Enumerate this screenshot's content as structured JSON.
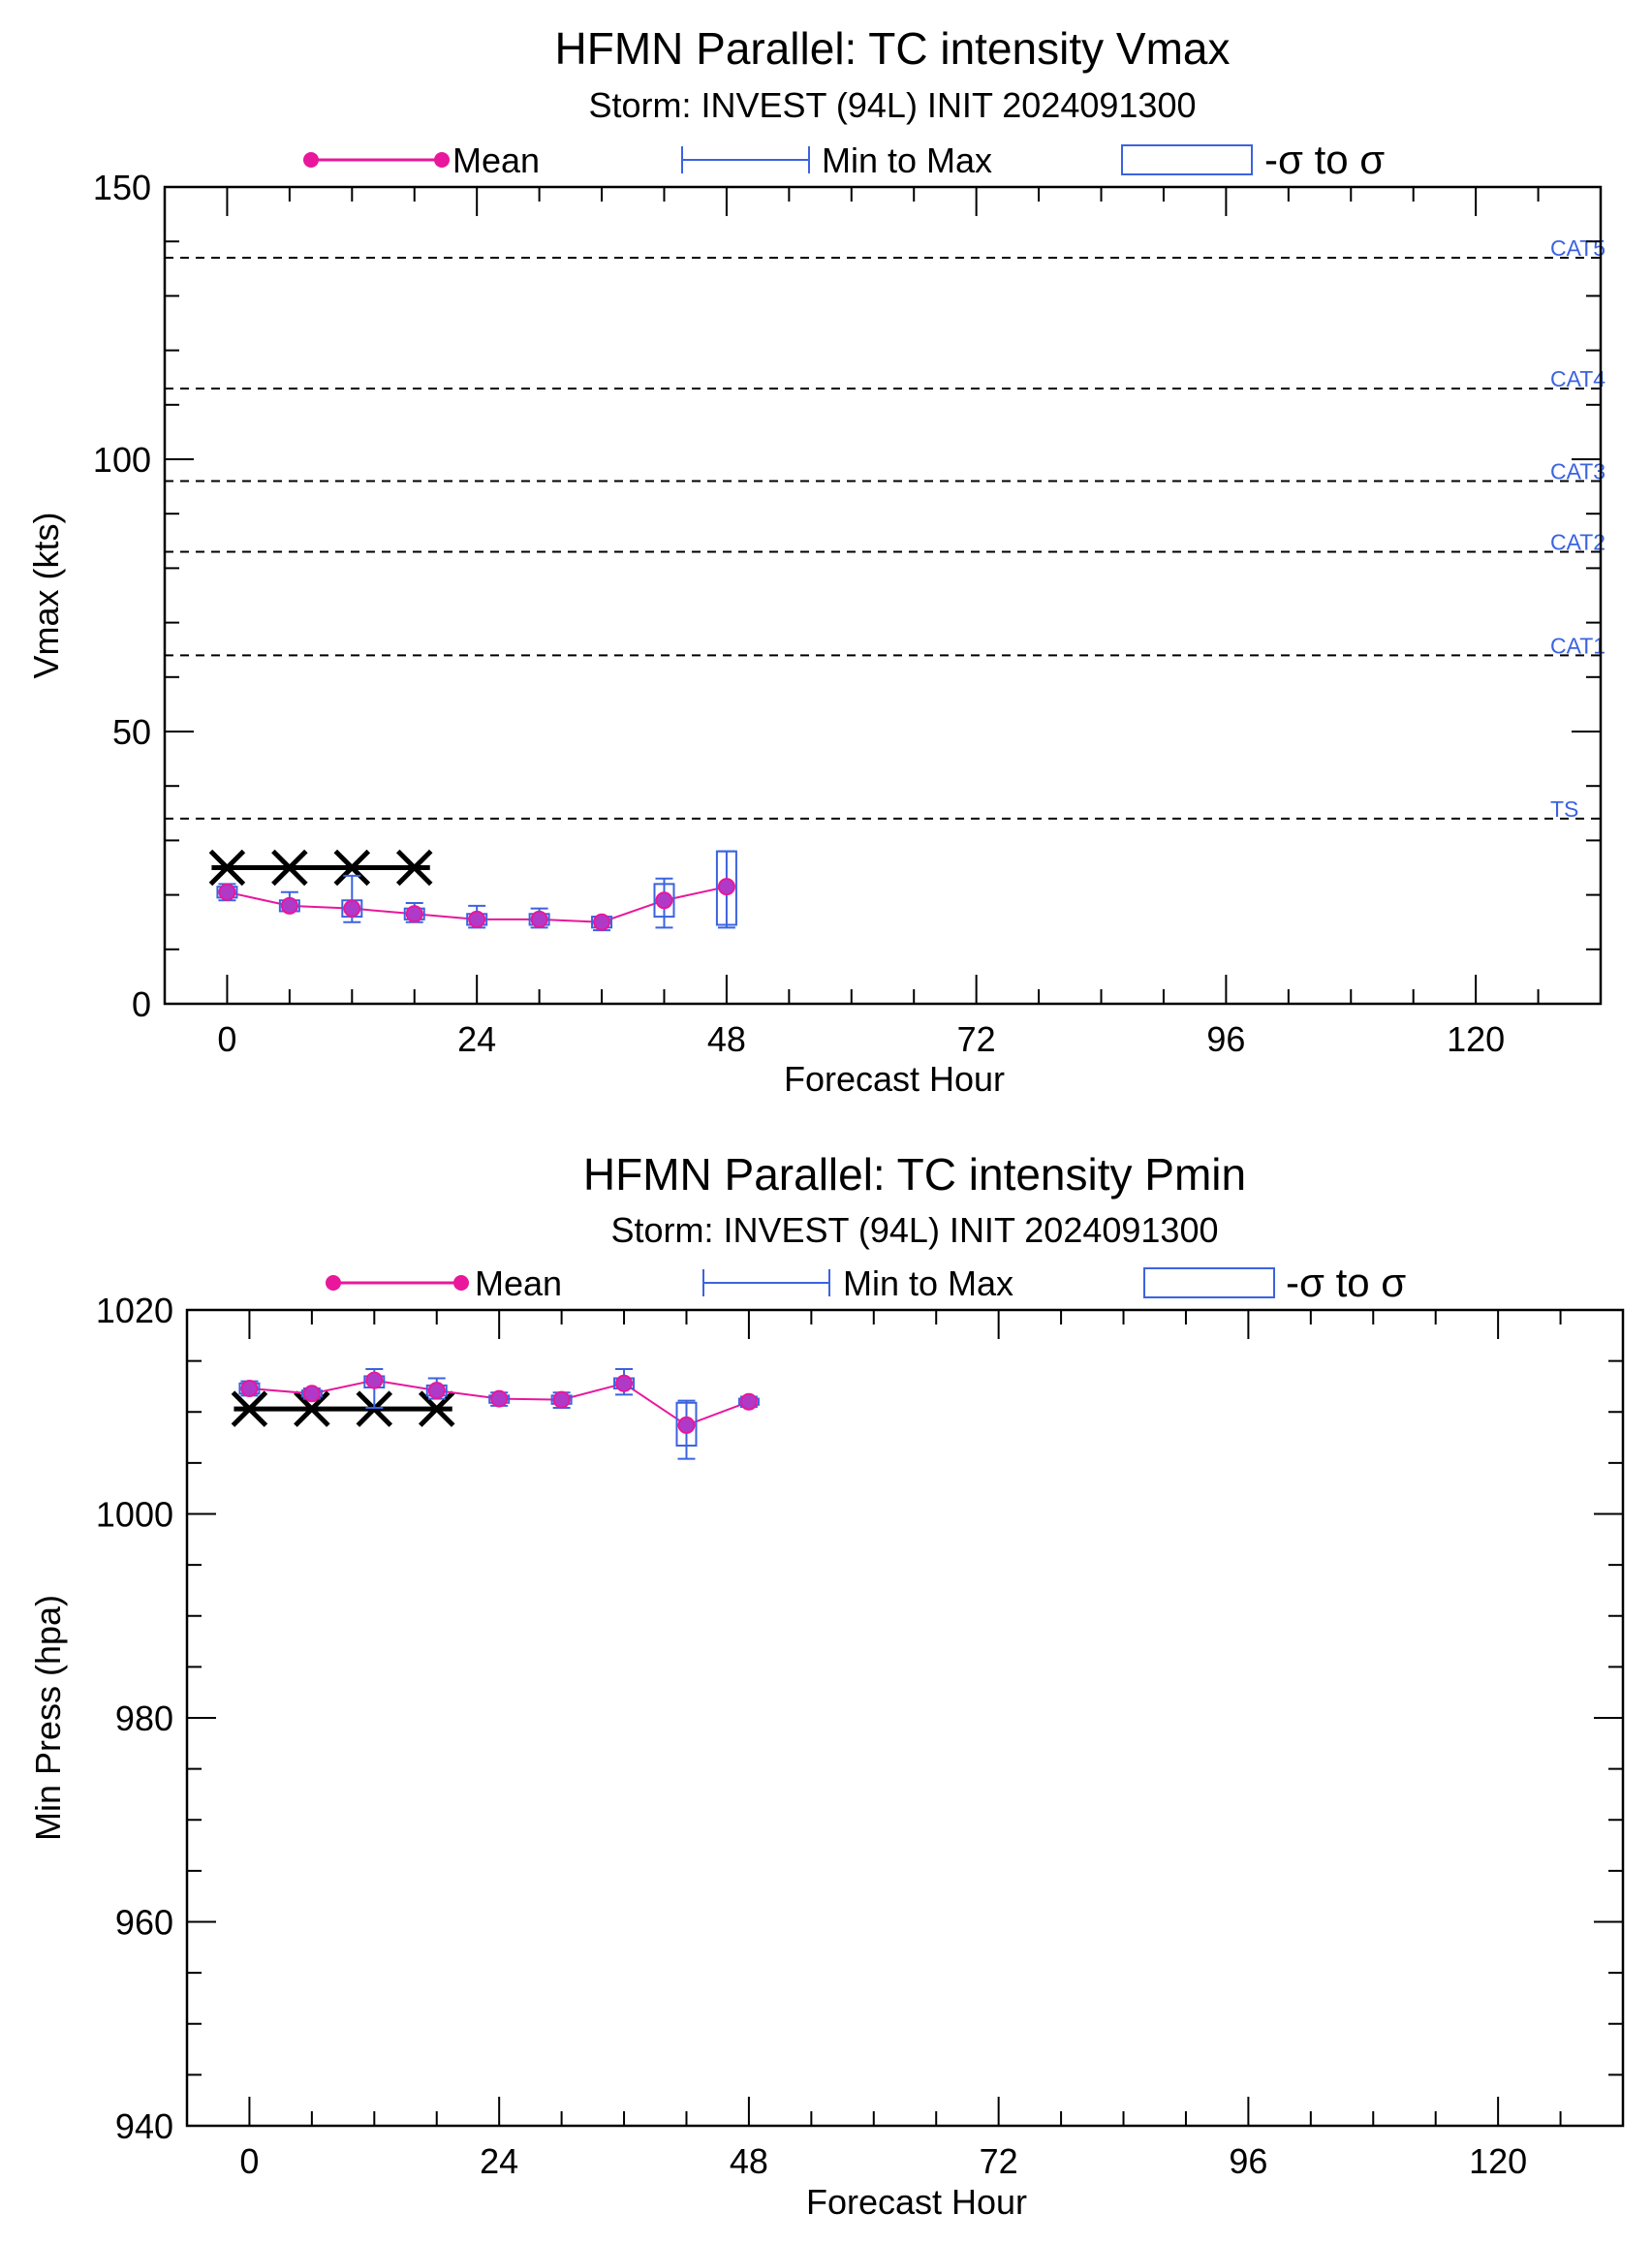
{
  "chart_data": [
    {
      "type": "line",
      "title": "HFMN Parallel: TC intensity Vmax",
      "subtitle": "Storm: INVEST (94L) INIT 2024091300",
      "xlabel": "Forecast Hour",
      "ylabel": "Vmax (kts)",
      "xlim": [
        -6,
        132
      ],
      "ylim": [
        0,
        150
      ],
      "xticks": [
        0,
        24,
        48,
        72,
        96,
        120
      ],
      "xtick_labels": [
        "0",
        "24",
        "48",
        "72",
        "96",
        "120"
      ],
      "yticks": [
        0,
        50,
        100,
        150
      ],
      "ytick_labels": [
        "0",
        "50",
        "100",
        "150"
      ],
      "yminor_step": 10,
      "xminor_step": 6,
      "legend": {
        "placement": "top",
        "mean_label": "Mean",
        "range_label": "Min to Max",
        "sigma_label": "-σ to σ"
      },
      "reference_lines": [
        {
          "label": "TS",
          "y": 34
        },
        {
          "label": "CAT1",
          "y": 64
        },
        {
          "label": "CAT2",
          "y": 83
        },
        {
          "label": "CAT3",
          "y": 96
        },
        {
          "label": "CAT4",
          "y": 113
        },
        {
          "label": "CAT5",
          "y": 137
        }
      ],
      "series": [
        {
          "name": "Mean",
          "x": [
            0,
            6,
            12,
            18,
            24,
            30,
            36,
            42,
            48
          ],
          "mean": [
            20.5,
            18,
            17.5,
            16.5,
            15.5,
            15.5,
            15,
            19,
            21.5
          ],
          "min": [
            19,
            17,
            15,
            15,
            14,
            14,
            13.5,
            14,
            14
          ],
          "max": [
            22,
            20.5,
            23.5,
            18.5,
            18,
            17.5,
            16,
            23,
            28
          ],
          "sigma_low": [
            19.5,
            17,
            16,
            15.5,
            14.5,
            14.5,
            14,
            16,
            14.5
          ],
          "sigma_high": [
            21.5,
            19,
            19,
            17.5,
            16.5,
            16.5,
            16,
            22,
            28
          ]
        }
      ],
      "best_track": {
        "x": [
          0,
          6,
          12,
          18
        ],
        "y": [
          25,
          25,
          25,
          25
        ]
      },
      "colors": {
        "mean": "#e8179b",
        "mean_fill": "#b03ac8",
        "range": "#3b63e0",
        "ref_line": "#000000",
        "best_track": "#000000"
      }
    },
    {
      "type": "line",
      "title": "HFMN Parallel: TC intensity Pmin",
      "subtitle": "Storm: INVEST (94L) INIT 2024091300",
      "xlabel": "Forecast Hour",
      "ylabel": "Min Press (hpa)",
      "xlim": [
        -6,
        132
      ],
      "ylim": [
        940,
        1020
      ],
      "xticks": [
        0,
        24,
        48,
        72,
        96,
        120
      ],
      "xtick_labels": [
        "0",
        "24",
        "48",
        "72",
        "96",
        "120"
      ],
      "yticks": [
        940,
        960,
        980,
        1000,
        1020
      ],
      "ytick_labels": [
        "940",
        "960",
        "980",
        "1000",
        "1020"
      ],
      "yminor_step": 5,
      "xminor_step": 6,
      "legend": {
        "placement": "top",
        "mean_label": "Mean",
        "range_label": "Min to Max",
        "sigma_label": "-σ to σ"
      },
      "reference_lines": [],
      "series": [
        {
          "name": "Mean",
          "x": [
            0,
            6,
            12,
            18,
            24,
            30,
            36,
            42,
            48
          ],
          "mean": [
            1012.3,
            1011.8,
            1013.1,
            1012.1,
            1011.3,
            1011.2,
            1012.8,
            1008.7,
            1011
          ],
          "min": [
            1011.6,
            1011.3,
            1010.4,
            1011.3,
            1010.6,
            1010.4,
            1011.7,
            1005.4,
            1010.5
          ],
          "max": [
            1013,
            1012.3,
            1014.2,
            1013.3,
            1011.9,
            1011.9,
            1014.2,
            1011.1,
            1011.5
          ],
          "sigma_low": [
            1011.8,
            1011.5,
            1012.4,
            1011.6,
            1010.9,
            1010.8,
            1012.3,
            1006.7,
            1010.7
          ],
          "sigma_high": [
            1012.8,
            1012.1,
            1013.5,
            1012.6,
            1011.6,
            1011.6,
            1013.3,
            1010.9,
            1011.3
          ]
        }
      ],
      "best_track": {
        "x": [
          0,
          6,
          12,
          18
        ],
        "y": [
          1010.3,
          1010.3,
          1010.3,
          1010.3
        ]
      },
      "colors": {
        "mean": "#e8179b",
        "mean_fill": "#b03ac8",
        "range": "#3b63e0",
        "ref_line": "#000000",
        "best_track": "#000000"
      }
    }
  ]
}
